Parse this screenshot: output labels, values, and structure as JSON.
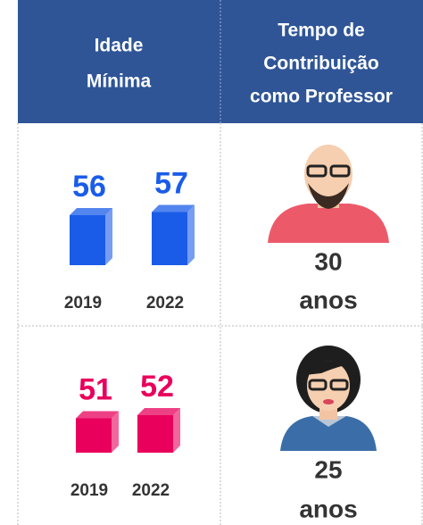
{
  "table": {
    "headers": [
      [
        "Idade",
        "Mínima"
      ],
      [
        "Tempo de",
        "Contribuição",
        "como Professor"
      ]
    ],
    "rows": [
      {
        "bars": [
          {
            "year": "2019",
            "value": 56
          },
          {
            "year": "2022",
            "value": 57
          }
        ],
        "color": "#1a5ce8",
        "time": "30",
        "unit": "anos"
      },
      {
        "bars": [
          {
            "year": "2019",
            "value": 51
          },
          {
            "year": "2022",
            "value": 52
          }
        ],
        "color": "#e8005c",
        "time": "25",
        "unit": "anos"
      }
    ]
  }
}
